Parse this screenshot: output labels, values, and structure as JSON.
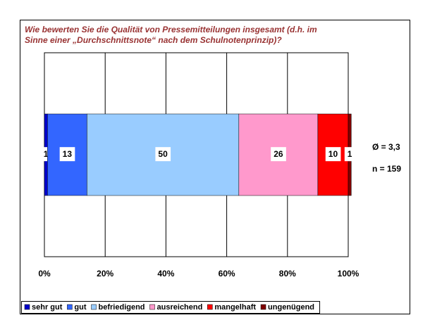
{
  "chart_data": {
    "type": "stacked-bar",
    "orientation": "horizontal",
    "title": [
      "Wie bewerten Sie die Qualität von Pressemitteilungen insgesamt (d.h. im",
      "Sinne einer „Durchschnittsnote“ nach dem Schulnotenprinzip)?"
    ],
    "categories": [
      null
    ],
    "series": [
      {
        "name": "sehr gut",
        "color": "#0000cc",
        "values": [
          1
        ]
      },
      {
        "name": "gut",
        "color": "#3366ff",
        "values": [
          13
        ]
      },
      {
        "name": "befriedigend",
        "color": "#99ccff",
        "values": [
          50
        ]
      },
      {
        "name": "ausreichend",
        "color": "#ff99cc",
        "values": [
          26
        ]
      },
      {
        "name": "mangelhaft",
        "color": "#ff0000",
        "values": [
          10
        ]
      },
      {
        "name": "ungenügend",
        "color": "#800000",
        "values": [
          1
        ]
      }
    ],
    "xlim": [
      0,
      100
    ],
    "xticks": [
      {
        "value": 0,
        "label": "0%"
      },
      {
        "value": 20,
        "label": "20%"
      },
      {
        "value": 40,
        "label": "40%"
      },
      {
        "value": 60,
        "label": "60%"
      },
      {
        "value": 80,
        "label": "80%"
      },
      {
        "value": 100,
        "label": "100%"
      }
    ],
    "grid": true,
    "legend": "bottom",
    "annotations": [
      "Ø = 3,3",
      "n = 159"
    ]
  }
}
